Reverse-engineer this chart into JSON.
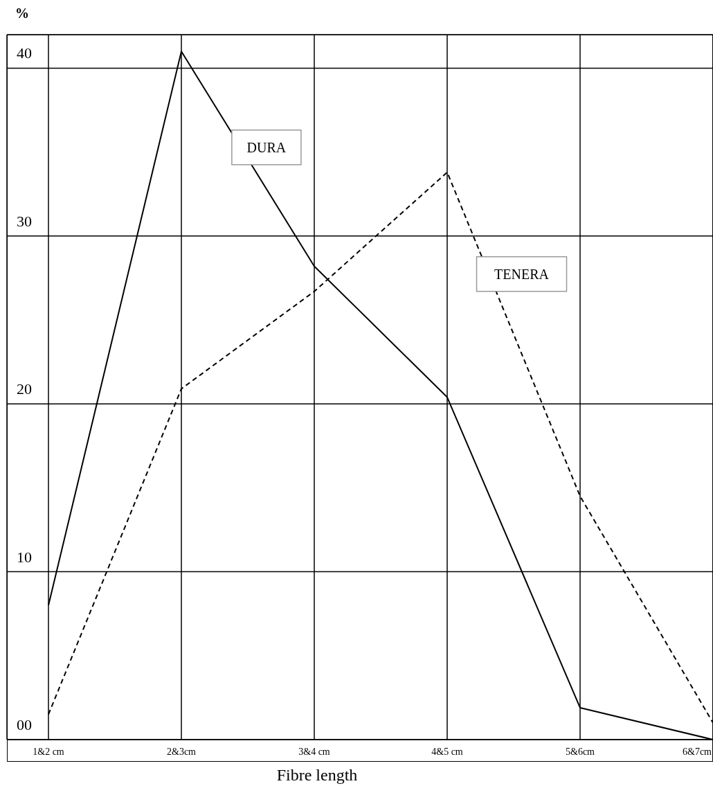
{
  "chart_data": {
    "type": "line",
    "xlabel": "Fibre length",
    "ylabel": "%",
    "categories": [
      "1&2 cm",
      "2&3cm",
      "3&4 cm",
      "4&5 cm",
      "5&6cm",
      "6&7cm"
    ],
    "series": [
      {
        "name": "DURA",
        "color": "#000000",
        "line_style": "solid",
        "values": [
          8,
          41,
          28.2,
          20.4,
          1.9,
          0
        ]
      },
      {
        "name": "TENERA",
        "color": "#000000",
        "line_style": "dashed",
        "values": [
          1.5,
          20.9,
          26.7,
          33.8,
          14.5,
          1
        ]
      }
    ],
    "ylim": [
      0,
      42
    ],
    "yticks": [
      {
        "value": 0,
        "label": "00"
      },
      10,
      20,
      30,
      40
    ],
    "grid": true,
    "marker": "none"
  }
}
